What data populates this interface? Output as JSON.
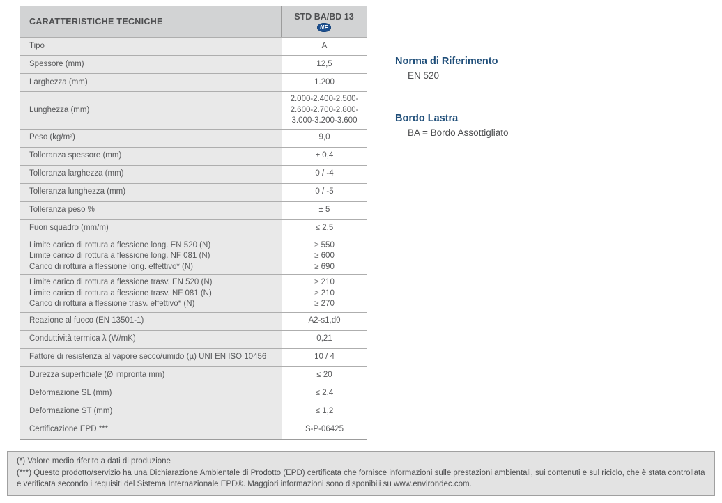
{
  "table": {
    "header": {
      "title": "CARATTERISTICHE TECNICHE",
      "column": "STD BA/BD 13",
      "logo_text": "NF"
    },
    "rows": [
      {
        "label": "Tipo",
        "value": "A"
      },
      {
        "label": "Spessore (mm)",
        "value": "12,5"
      },
      {
        "label": "Larghezza (mm)",
        "value": "1.200"
      },
      {
        "label": "Lunghezza (mm)",
        "value": "2.000-2.400-2.500-\n2.600-2.700-2.800-\n3.000-3.200-3.600"
      },
      {
        "label": "Peso (kg/m²)",
        "value": "9,0"
      },
      {
        "label": "Tolleranza spessore (mm)",
        "value": "± 0,4"
      },
      {
        "label": "Tolleranza larghezza (mm)",
        "value": "0 / -4"
      },
      {
        "label": "Tolleranza lunghezza (mm)",
        "value": "0 / -5"
      },
      {
        "label": "Tolleranza peso %",
        "value": "± 5"
      },
      {
        "label": "Fuori squadro (mm/m)",
        "value": "≤ 2,5"
      },
      {
        "label": "Limite carico di rottura a flessione long. EN 520 (N)\nLimite carico di rottura a flessione long. NF 081 (N)\nCarico di rottura a flessione long. effettivo* (N)",
        "value": "≥ 550\n≥ 600\n≥ 690"
      },
      {
        "label": "Limite carico di rottura a flessione trasv. EN 520 (N)\nLimite carico di rottura a flessione trasv. NF 081 (N)\nCarico di rottura a flessione trasv. effettivo* (N)",
        "value": "≥ 210\n≥ 210\n≥ 270"
      },
      {
        "label": "Reazione al fuoco (EN 13501-1)",
        "value": "A2-s1,d0"
      },
      {
        "label": "Conduttività termica λ (W/mK)",
        "value": "0,21"
      },
      {
        "label": "Fattore di resistenza al vapore secco/umido (µ) UNI EN ISO 10456",
        "value": "10 / 4"
      },
      {
        "label": "Durezza superficiale (Ø impronta mm)",
        "value": "≤ 20"
      },
      {
        "label": "Deformazione SL (mm)",
        "value": "≤ 2,4"
      },
      {
        "label": "Deformazione ST (mm)",
        "value": "≤ 1,2"
      },
      {
        "label": "Certificazione EPD ***",
        "value": "S-P-06425"
      }
    ]
  },
  "side": {
    "norma_heading": "Norma di Riferimento",
    "norma_value": "EN 520",
    "bordo_heading": "Bordo Lastra",
    "bordo_value": "BA = Bordo Assottigliato"
  },
  "footnotes": {
    "line1": "(*) Valore medio riferito a dati di produzione",
    "line2": "(***) Questo prodotto/servizio ha una Dichiarazione Ambientale di Prodotto (EPD) certificata che fornisce informazioni sulle prestazioni ambientali, sui contenuti e sul riciclo, che è stata controllata e verificata secondo i requisiti del Sistema Internazionale EPD®. Maggiori informazioni sono disponibili su www.environdec.com."
  },
  "colors": {
    "accent_blue": "#1f4e79",
    "nf_logo_blue": "#1c4f8f",
    "header_bg": "#d2d3d4",
    "label_cell_bg": "#e9e9e9",
    "value_cell_bg": "#ffffff",
    "footnote_bg": "#e3e3e3"
  }
}
